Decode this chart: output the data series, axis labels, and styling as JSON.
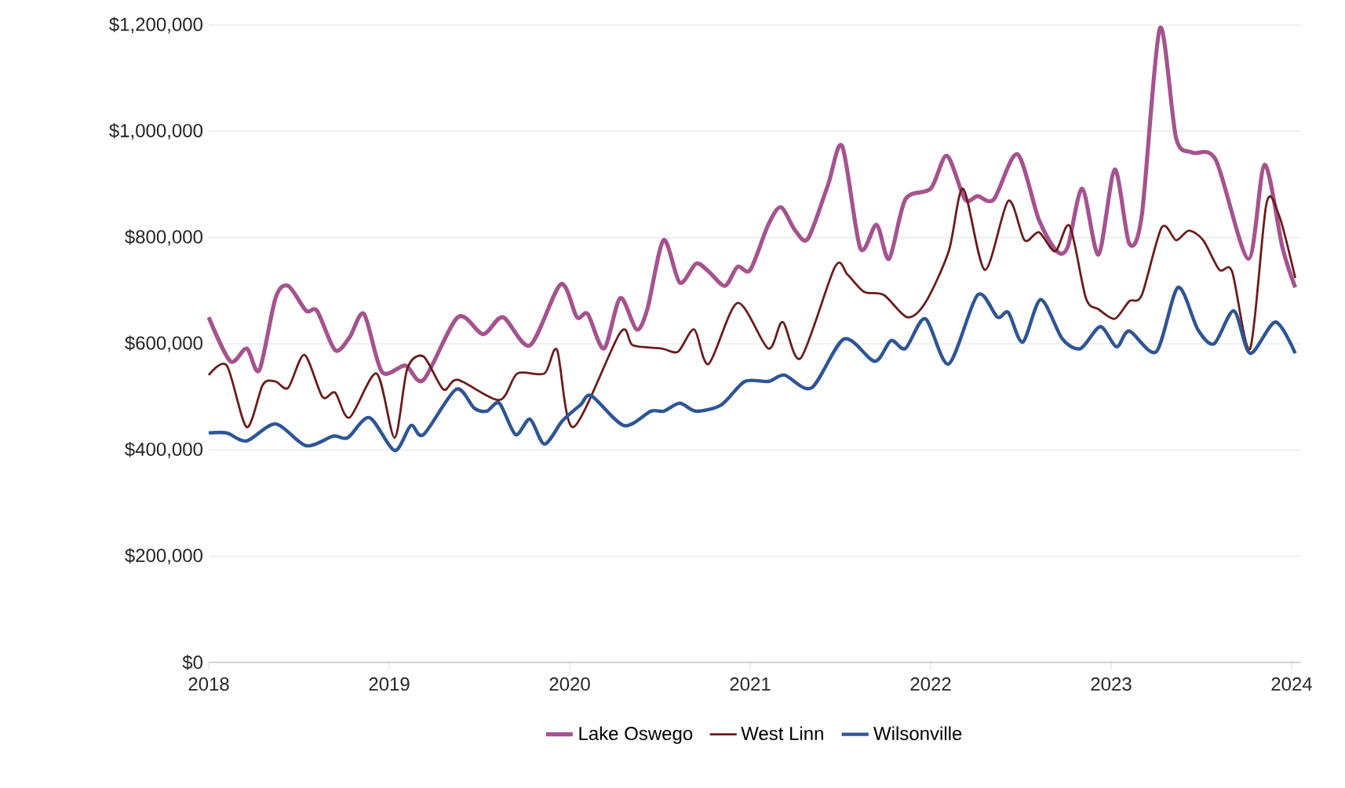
{
  "chart_data": {
    "type": "line",
    "xlim": [
      2018,
      2024.05
    ],
    "ylim": [
      0,
      1200000
    ],
    "xticks": [
      2018,
      2019,
      2020,
      2021,
      2022,
      2023,
      2024
    ],
    "yticks": [
      {
        "value": 0,
        "label": "$0"
      },
      {
        "value": 200000,
        "label": "$200,000"
      },
      {
        "value": 400000,
        "label": "$400,000"
      },
      {
        "value": 600000,
        "label": "$600,000"
      },
      {
        "value": 800000,
        "label": "$800,000"
      },
      {
        "value": 1000000,
        "label": "$1,000,000"
      },
      {
        "value": 1200000,
        "label": "$1,200,000"
      }
    ],
    "grid": "y",
    "legend": "bottom",
    "series": [
      {
        "name": "Lake Oswego",
        "color": "#a5538f",
        "x": [
          2018.0,
          2018.12,
          2018.21,
          2018.28,
          2018.37,
          2018.44,
          2018.54,
          2018.6,
          2018.7,
          2018.78,
          2018.86,
          2018.96,
          2019.09,
          2019.19,
          2019.38,
          2019.52,
          2019.63,
          2019.78,
          2019.95,
          2020.04,
          2020.1,
          2020.19,
          2020.28,
          2020.37,
          2020.43,
          2020.52,
          2020.61,
          2020.7,
          2020.77,
          2020.86,
          2020.93,
          2021.0,
          2021.1,
          2021.17,
          2021.25,
          2021.32,
          2021.43,
          2021.51,
          2021.61,
          2021.7,
          2021.77,
          2021.86,
          2022.0,
          2022.09,
          2022.19,
          2022.26,
          2022.35,
          2022.48,
          2022.6,
          2022.7,
          2022.76,
          2022.84,
          2022.93,
          2023.02,
          2023.1,
          2023.17,
          2023.27,
          2023.36,
          2023.45,
          2023.58,
          2023.76,
          2023.85,
          2023.95,
          2024.02
        ],
        "values": [
          650000,
          567000,
          591000,
          550000,
          686000,
          709000,
          662000,
          662000,
          588000,
          612000,
          656000,
          547000,
          559000,
          532000,
          650000,
          618000,
          650000,
          597000,
          712000,
          650000,
          656000,
          591000,
          686000,
          627000,
          665000,
          795000,
          715000,
          751000,
          736000,
          709000,
          745000,
          739000,
          824000,
          857000,
          813000,
          798000,
          898000,
          972000,
          780000,
          824000,
          760000,
          872000,
          892000,
          954000,
          872000,
          878000,
          872000,
          957000,
          833000,
          774000,
          783000,
          892000,
          768000,
          928000,
          789000,
          842000,
          1194000,
          987000,
          960000,
          946000,
          760000,
          937000,
          780000,
          706000
        ]
      },
      {
        "name": "West Linn",
        "color": "#6b1c1c",
        "x": [
          2018.0,
          2018.1,
          2018.21,
          2018.3,
          2018.37,
          2018.44,
          2018.53,
          2018.63,
          2018.7,
          2018.78,
          2018.93,
          2019.03,
          2019.1,
          2019.19,
          2019.3,
          2019.38,
          2019.61,
          2019.71,
          2019.86,
          2019.93,
          2020.02,
          2020.28,
          2020.35,
          2020.51,
          2020.6,
          2020.69,
          2020.77,
          2020.93,
          2021.1,
          2021.18,
          2021.28,
          2021.47,
          2021.54,
          2021.63,
          2021.74,
          2021.87,
          2021.97,
          2022.1,
          2022.18,
          2022.3,
          2022.43,
          2022.52,
          2022.6,
          2022.69,
          2022.77,
          2022.86,
          2022.93,
          2023.02,
          2023.1,
          2023.17,
          2023.28,
          2023.36,
          2023.43,
          2023.51,
          2023.6,
          2023.67,
          2023.77,
          2023.86,
          2023.93,
          2024.02
        ],
        "values": [
          541000,
          559000,
          443000,
          523000,
          529000,
          517000,
          579000,
          500000,
          508000,
          461000,
          544000,
          423000,
          553000,
          576000,
          514000,
          532000,
          494000,
          544000,
          544000,
          588000,
          443000,
          621000,
          597000,
          591000,
          585000,
          627000,
          562000,
          677000,
          591000,
          641000,
          573000,
          745000,
          730000,
          698000,
          692000,
          650000,
          677000,
          774000,
          892000,
          739000,
          869000,
          795000,
          810000,
          774000,
          822000,
          686000,
          665000,
          647000,
          680000,
          692000,
          819000,
          795000,
          813000,
          795000,
          739000,
          736000,
          591000,
          863000,
          842000,
          724000
        ]
      },
      {
        "name": "Wilsonville",
        "color": "#2e5595",
        "x": [
          2018.0,
          2018.1,
          2018.21,
          2018.37,
          2018.54,
          2018.69,
          2018.77,
          2018.89,
          2019.03,
          2019.12,
          2019.19,
          2019.37,
          2019.47,
          2019.54,
          2019.61,
          2019.7,
          2019.78,
          2019.86,
          2019.96,
          2020.06,
          2020.12,
          2020.3,
          2020.45,
          2020.52,
          2020.61,
          2020.7,
          2020.84,
          2020.97,
          2021.1,
          2021.19,
          2021.34,
          2021.52,
          2021.69,
          2021.78,
          2021.86,
          2021.97,
          2022.1,
          2022.26,
          2022.37,
          2022.43,
          2022.51,
          2022.61,
          2022.73,
          2022.83,
          2022.94,
          2023.03,
          2023.1,
          2023.25,
          2023.37,
          2023.48,
          2023.57,
          2023.68,
          2023.77,
          2023.91,
          2024.02
        ],
        "values": [
          432000,
          432000,
          417000,
          449000,
          408000,
          426000,
          423000,
          461000,
          399000,
          446000,
          429000,
          514000,
          479000,
          473000,
          488000,
          429000,
          458000,
          411000,
          455000,
          485000,
          502000,
          446000,
          473000,
          473000,
          488000,
          473000,
          485000,
          529000,
          529000,
          541000,
          517000,
          609000,
          567000,
          606000,
          591000,
          647000,
          562000,
          692000,
          650000,
          659000,
          603000,
          683000,
          609000,
          591000,
          632000,
          594000,
          624000,
          585000,
          706000,
          627000,
          600000,
          662000,
          582000,
          641000,
          582000
        ]
      }
    ]
  }
}
